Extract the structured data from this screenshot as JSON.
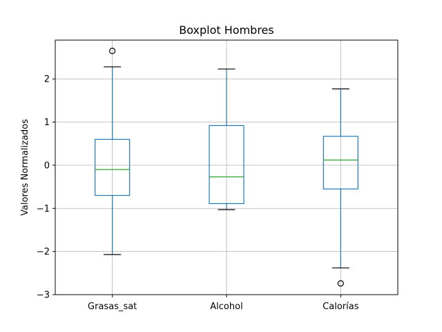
{
  "chart_data": {
    "type": "box",
    "title": "Boxplot Hombres",
    "xlabel": "",
    "ylabel": "Valores Normalizados",
    "categories": [
      "Grasas_sat",
      "Alcohol",
      "Calorías"
    ],
    "ylim": [
      -3.0,
      2.9
    ],
    "yticks": [
      -3,
      -2,
      -1,
      0,
      1,
      2
    ],
    "ytick_labels": [
      "−3",
      "−2",
      "−1",
      "0",
      "1",
      "2"
    ],
    "grid": true,
    "colors": {
      "box": "#1f77b4",
      "median": "#2ca02c",
      "whisker": "#1f77b4",
      "cap": "#000000",
      "flier": "#000000",
      "grid": "#b0b0b0",
      "axes": "#000000"
    },
    "boxes": [
      {
        "name": "Grasas_sat",
        "whislo": -2.07,
        "q1": -0.7,
        "med": -0.1,
        "q3": 0.6,
        "whishi": 2.28,
        "fliers": [
          2.65
        ]
      },
      {
        "name": "Alcohol",
        "whislo": -1.03,
        "q1": -0.89,
        "med": -0.27,
        "q3": 0.92,
        "whishi": 2.23,
        "fliers": []
      },
      {
        "name": "Calorías",
        "whislo": -2.38,
        "q1": -0.55,
        "med": 0.12,
        "q3": 0.67,
        "whishi": 1.77,
        "fliers": [
          -2.74
        ]
      }
    ]
  }
}
